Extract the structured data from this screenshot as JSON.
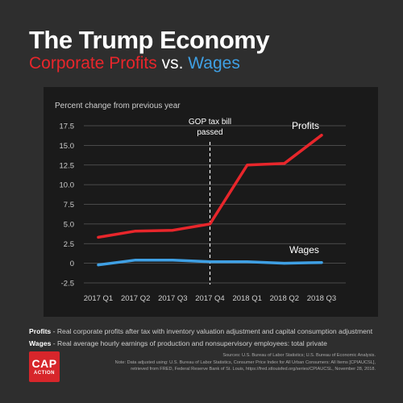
{
  "header": {
    "title": "The Trump Economy",
    "subtitle_part1": "Corporate Profits",
    "subtitle_vs": " vs. ",
    "subtitle_part2": "Wages"
  },
  "colors": {
    "profits": "#e8262b",
    "wages": "#3fa0e4",
    "background": "#2e2e2e",
    "panel": "#1a1a1a"
  },
  "chart_data": {
    "type": "line",
    "ylabel": "Percent change from previous year",
    "categories": [
      "2017 Q1",
      "2017 Q2",
      "2017 Q3",
      "2017 Q4",
      "2018 Q1",
      "2018 Q2",
      "2018 Q3"
    ],
    "yticks": [
      "17.5",
      "15.0",
      "12.5",
      "10.0",
      "7.5",
      "5.0",
      "2.5",
      "0",
      "-2.5"
    ],
    "ylim": [
      -2.5,
      17.5
    ],
    "grid": true,
    "series": [
      {
        "name": "Profits",
        "color": "#e8262b",
        "values": [
          3.3,
          4.1,
          4.2,
          5.0,
          12.5,
          12.7,
          16.3
        ]
      },
      {
        "name": "Wages",
        "color": "#3fa0e4",
        "values": [
          -0.2,
          0.4,
          0.4,
          0.2,
          0.2,
          0.0,
          0.1
        ]
      }
    ],
    "annotation": {
      "text_line1": "GOP tax bill",
      "text_line2": "passed",
      "at_category": "2017 Q4"
    }
  },
  "footnotes": {
    "profits_label": "Profits",
    "profits_text": " - Real corporate profits after tax with inventory valuation adjustment and capital consumption adjustment",
    "wages_label": "Wages",
    "wages_text": " - Real average hourly earnings of production and nonsupervisory employees: total private"
  },
  "sources": {
    "line1": "Sources: U.S. Bureau of Labor Statistics; U.S. Bureau of Economic Analysis.",
    "line2": "Note: Data adjusted using: U.S. Bureau of Labor Statistics, Consumer Price Index for All Urban Consumers: All Items [CPIAUCSL],",
    "line3": "retrieved from FRED, Federal Reserve Bank of St. Louis, https://fred.stlouisfed.org/series/CPIAUCSL, November 28, 2018."
  },
  "logo": {
    "line1": "CAP",
    "line2": "ACTION"
  }
}
